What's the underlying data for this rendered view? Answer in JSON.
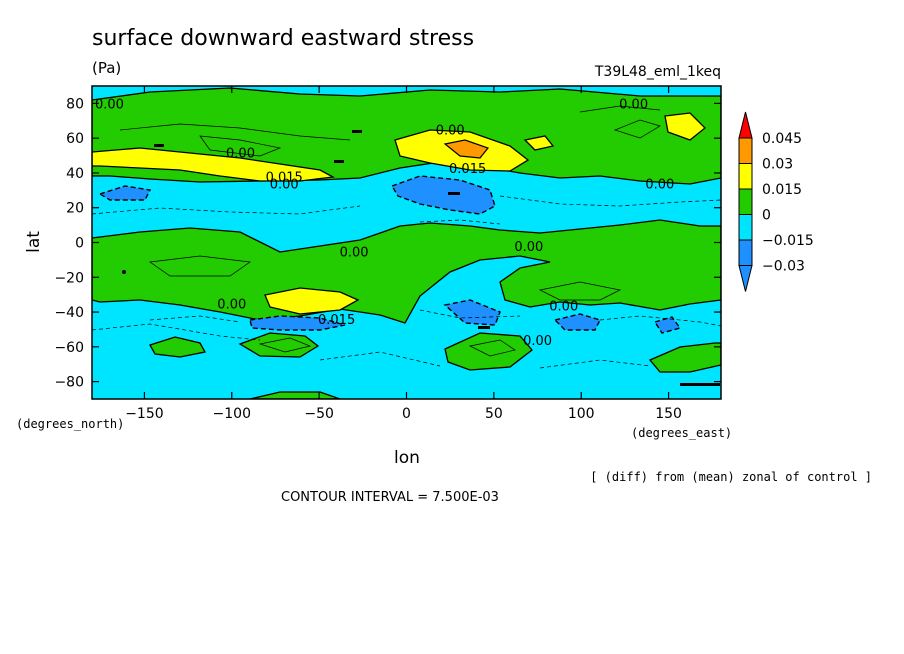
{
  "chart_data": {
    "type": "contour",
    "title": "surface downward eastward stress",
    "units": "(Pa)",
    "run_label": "T39L48_eml_1keq",
    "xlabel": "lon",
    "ylabel": "lat",
    "x_units": "(degrees_east)",
    "y_units": "(degrees_north)",
    "xlim": [
      -180,
      180
    ],
    "ylim": [
      -90,
      90
    ],
    "x_ticks": [
      -150,
      -100,
      -50,
      0,
      50,
      100,
      150
    ],
    "x_tick_labels": [
      "−150",
      "−100",
      "−50",
      "0",
      "50",
      "100",
      "150"
    ],
    "y_ticks": [
      80,
      60,
      40,
      20,
      0,
      -20,
      -40,
      -60,
      -80
    ],
    "y_tick_labels": [
      "80",
      "60",
      "40",
      "20",
      "0",
      "−20",
      "−40",
      "−60",
      "−80"
    ],
    "colorbar": {
      "levels": [
        -0.03,
        -0.015,
        0,
        0.015,
        0.03,
        0.045
      ],
      "labels": [
        "−0.03",
        "−0.015",
        "0",
        "0.015",
        "0.03",
        "0.045"
      ],
      "colors": [
        "#1e90ff",
        "#00e5ff",
        "#22cc00",
        "#ffff00",
        "#ff9900",
        "#ff0000"
      ],
      "below_color": "#1e90ff",
      "above_color": "#ff0000"
    },
    "contour_labels": [
      {
        "text": "0.00",
        "lon": -170,
        "lat": 77
      },
      {
        "text": "0.00",
        "lon": 130,
        "lat": 77
      },
      {
        "text": "0.00",
        "lon": 25,
        "lat": 62
      },
      {
        "text": "0.00",
        "lon": -95,
        "lat": 49
      },
      {
        "text": "0.015",
        "lon": -70,
        "lat": 35
      },
      {
        "text": "0.00",
        "lon": -70,
        "lat": 31
      },
      {
        "text": "0.015",
        "lon": 35,
        "lat": 40
      },
      {
        "text": "0.00",
        "lon": 145,
        "lat": 31
      },
      {
        "text": "0.00",
        "lon": -30,
        "lat": -8
      },
      {
        "text": "0.00",
        "lon": 70,
        "lat": -5
      },
      {
        "text": "0.00",
        "lon": -100,
        "lat": -38
      },
      {
        "text": "0.015",
        "lon": -40,
        "lat": -47
      },
      {
        "text": "0.00",
        "lon": 90,
        "lat": -39
      },
      {
        "text": "0.00",
        "lon": 75,
        "lat": -59
      }
    ],
    "contour_interval_text": "CONTOUR INTERVAL = 7.500E-03",
    "note": "[ (diff) from (mean) zonal of control ]"
  }
}
